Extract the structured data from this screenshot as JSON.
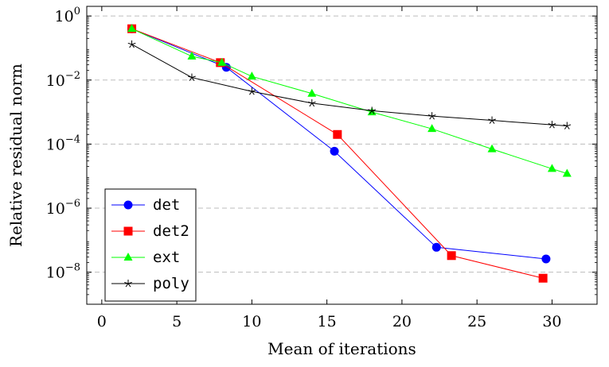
{
  "chart_data": {
    "type": "line",
    "xlabel": "Mean of iterations",
    "ylabel": "Relative residual norm",
    "y_scale": "log",
    "xlim": [
      -1,
      33
    ],
    "ylim": [
      1e-09,
      2
    ],
    "x_ticks": [
      0,
      5,
      10,
      15,
      20,
      25,
      30
    ],
    "y_ticks": [
      {
        "value": 1e-08,
        "base": "10",
        "exp": "−8"
      },
      {
        "value": 1e-06,
        "base": "10",
        "exp": "−6"
      },
      {
        "value": 0.0001,
        "base": "10",
        "exp": "−4"
      },
      {
        "value": 0.01,
        "base": "10",
        "exp": "−2"
      },
      {
        "value": 1,
        "base": "10",
        "exp": "0"
      }
    ],
    "grid": "horizontal dashed at major y ticks",
    "legend_position": "bottom-left",
    "series": [
      {
        "name": "det",
        "color": "#0000ff",
        "marker": "circle",
        "points": [
          [
            2,
            0.4
          ],
          [
            8.3,
            0.025
          ],
          [
            15.5,
            6e-05
          ],
          [
            22.3,
            6e-08
          ],
          [
            29.6,
            2.6e-08
          ]
        ]
      },
      {
        "name": "det2",
        "color": "#ff0000",
        "marker": "square",
        "points": [
          [
            2,
            0.4
          ],
          [
            7.9,
            0.035
          ],
          [
            15.7,
            0.0002
          ],
          [
            23.3,
            3.3e-08
          ],
          [
            29.4,
            6.5e-09
          ]
        ]
      },
      {
        "name": "ext",
        "color": "#00ff00",
        "marker": "triangle",
        "points": [
          [
            2,
            0.4
          ],
          [
            6,
            0.055
          ],
          [
            8,
            0.035
          ],
          [
            10,
            0.013
          ],
          [
            14,
            0.0038
          ],
          [
            18,
            0.001
          ],
          [
            22,
            0.0003
          ],
          [
            26,
            7e-05
          ],
          [
            30,
            1.7e-05
          ],
          [
            31,
            1.2e-05
          ]
        ]
      },
      {
        "name": "poly",
        "color": "#000000",
        "marker": "star",
        "points": [
          [
            2,
            0.13
          ],
          [
            6,
            0.012
          ],
          [
            10,
            0.0044
          ],
          [
            14,
            0.0019
          ],
          [
            18,
            0.0011
          ],
          [
            22,
            0.00075
          ],
          [
            26,
            0.00055
          ],
          [
            30,
            0.0004
          ],
          [
            31,
            0.00037
          ]
        ]
      }
    ]
  }
}
